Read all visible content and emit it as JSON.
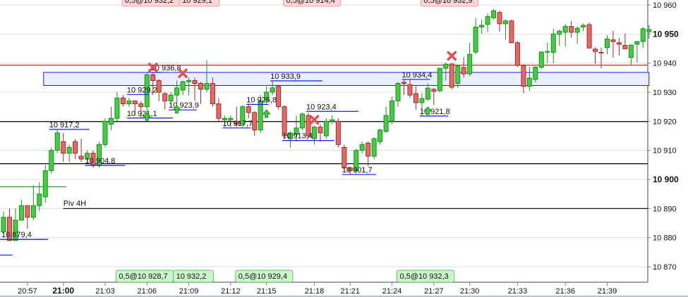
{
  "chart_data": {
    "type": "candlestick",
    "ylim": [
      10865,
      10962
    ],
    "y_ticks": [
      10960,
      10950,
      10940,
      10930,
      10920,
      10910,
      10900,
      10890,
      10880,
      10870
    ],
    "y_tick_labels": [
      "10 960",
      "10 950",
      "10 940",
      "10 930",
      "10 920",
      "10 910",
      "10 900",
      "10 890",
      "10 880",
      "10 870"
    ],
    "y_bold_ticks": [
      10950,
      10900
    ],
    "x_ticks": [
      {
        "candle": 4,
        "label": "20:57"
      },
      {
        "candle": 10,
        "label": "21:00",
        "bold": true
      },
      {
        "candle": 17,
        "label": "21:03"
      },
      {
        "candle": 24,
        "label": "21:06"
      },
      {
        "candle": 31,
        "label": "21:09"
      },
      {
        "candle": 38,
        "label": "21:12"
      },
      {
        "candle": 44,
        "label": "21:15"
      },
      {
        "candle": 52,
        "label": "21:18"
      },
      {
        "candle": 58,
        "label": "21:21"
      },
      {
        "candle": 65,
        "label": "21:24"
      },
      {
        "candle": 72,
        "label": "21:27"
      },
      {
        "candle": 78,
        "label": "21:30"
      },
      {
        "candle": 86,
        "label": "21:33"
      },
      {
        "candle": 94,
        "label": "21:36"
      },
      {
        "candle": 101,
        "label": "21:39"
      }
    ],
    "grid": true,
    "colors": {
      "up": "#44cc44",
      "up_border": "#1a8f1a",
      "down": "#e46a6a",
      "down_border": "#a82828",
      "level": "#1a1aee",
      "resistance": "#ee1111",
      "zone_fill": "#e8eefc"
    },
    "ohlc": [
      [
        10882,
        10889,
        10881,
        10887
      ],
      [
        10887,
        10890,
        10879,
        10879
      ],
      [
        10879,
        10890,
        10879,
        10886
      ],
      [
        10886,
        10893,
        10886,
        10891
      ],
      [
        10891,
        10891,
        10883,
        10887
      ],
      [
        10887,
        10898,
        10886,
        10891
      ],
      [
        10891,
        10899,
        10889,
        10895
      ],
      [
        10894,
        10905,
        10892,
        10903
      ],
      [
        10903,
        10911,
        10902,
        10910
      ],
      [
        10910,
        10917,
        10909,
        10916
      ],
      [
        10913,
        10916,
        10906,
        10909
      ],
      [
        10909,
        10912,
        10906,
        10911
      ],
      [
        10913,
        10914,
        10907,
        10909
      ],
      [
        10908,
        10914,
        10906,
        10907
      ],
      [
        10907,
        10910,
        10906,
        10909
      ],
      [
        10909,
        10910,
        10904,
        10905
      ],
      [
        10905,
        10913,
        10904,
        10912
      ],
      [
        10912,
        10921,
        10911,
        10920
      ],
      [
        10919,
        10925,
        10917,
        10921
      ],
      [
        10921,
        10930,
        10920,
        10928
      ],
      [
        10928,
        10929,
        10925,
        10926
      ],
      [
        10926,
        10928,
        10925,
        10927
      ],
      [
        10927,
        10927,
        10922,
        10926
      ],
      [
        10926,
        10927,
        10921,
        10925
      ],
      [
        10925,
        10937,
        10922,
        10936
      ],
      [
        10936,
        10936.5,
        10929,
        10934
      ],
      [
        10934,
        10934.5,
        10927,
        10930
      ],
      [
        10929.5,
        10930,
        10924,
        10927
      ],
      [
        10927,
        10930,
        10925,
        10929
      ],
      [
        10929,
        10934,
        10926,
        10931.5
      ],
      [
        10930.7,
        10934,
        10929,
        10933.6
      ],
      [
        10933.6,
        10935,
        10929,
        10934
      ],
      [
        10934,
        10935,
        10927,
        10933
      ],
      [
        10933,
        10933.5,
        10926,
        10931
      ],
      [
        10931,
        10941,
        10930,
        10933
      ],
      [
        10933,
        10935,
        10925,
        10926
      ],
      [
        10926,
        10928,
        10920,
        10921
      ],
      [
        10920.5,
        10922,
        10918,
        10921
      ],
      [
        10920.5,
        10922,
        10918,
        10921
      ],
      [
        10920,
        10925,
        10918,
        10919
      ],
      [
        10919,
        10925.5,
        10918,
        10925
      ],
      [
        10925,
        10926,
        10921,
        10923
      ],
      [
        10923,
        10923.5,
        10915,
        10917
      ],
      [
        10917,
        10929,
        10916,
        10927
      ],
      [
        10927,
        10932,
        10926,
        10930
      ],
      [
        10930,
        10934,
        10929,
        10931.5
      ],
      [
        10932,
        10932.5,
        10924,
        10925
      ],
      [
        10925,
        10925.5,
        10914,
        10915
      ],
      [
        10914,
        10916.5,
        10911,
        10916
      ],
      [
        10915.5,
        10922,
        10913,
        10917.7
      ],
      [
        10917.7,
        10923,
        10917,
        10922.5
      ],
      [
        10922,
        10923,
        10914,
        10915
      ],
      [
        10914,
        10918.5,
        10912,
        10918
      ],
      [
        10918,
        10919,
        10913,
        10916
      ],
      [
        10915,
        10921,
        10914,
        10920
      ],
      [
        10920,
        10922,
        10919,
        10920.5
      ],
      [
        10920,
        10921,
        10911,
        10912
      ],
      [
        10911,
        10912,
        10903,
        10904
      ],
      [
        10904,
        10904.5,
        10901.7,
        10903
      ],
      [
        10903,
        10910.5,
        10902,
        10910
      ],
      [
        10910,
        10913,
        10909,
        10912
      ],
      [
        10912.5,
        10913,
        10904.6,
        10908
      ],
      [
        10908,
        10914.5,
        10907,
        10914
      ],
      [
        10913,
        10917.5,
        10912,
        10917
      ],
      [
        10916.5,
        10925,
        10916,
        10922
      ],
      [
        10920,
        10928.5,
        10919,
        10927
      ],
      [
        10927,
        10933.5,
        10925,
        10933
      ],
      [
        10933.4,
        10934.4,
        10929,
        10933
      ],
      [
        10932.6,
        10934.4,
        10928,
        10929
      ],
      [
        10929.5,
        10932,
        10924,
        10926.4
      ],
      [
        10926.4,
        10929.6,
        10921.8,
        10927.8
      ],
      [
        10927.6,
        10933,
        10927,
        10931.4
      ],
      [
        10931,
        10931.5,
        10925.5,
        10930.3
      ],
      [
        10930.5,
        10938.5,
        10930,
        10938.2
      ],
      [
        10938.2,
        10940.2,
        10934,
        10939.6
      ],
      [
        10939.7,
        10940,
        10931,
        10931.7
      ],
      [
        10933,
        10939.5,
        10931.5,
        10939
      ],
      [
        10938.5,
        10942,
        10935,
        10936.3
      ],
      [
        10936.3,
        10947,
        10935.5,
        10943
      ],
      [
        10943.8,
        10955.5,
        10943,
        10952.4
      ],
      [
        10952.4,
        10955,
        10950,
        10953
      ],
      [
        10953.3,
        10957,
        10950.6,
        10956
      ],
      [
        10955.6,
        10958.5,
        10955,
        10958
      ],
      [
        10957.4,
        10958,
        10950.8,
        10953.5
      ],
      [
        10953.5,
        10955,
        10948,
        10954.5
      ],
      [
        10954.5,
        10955,
        10947,
        10947
      ],
      [
        10947,
        10947.5,
        10938.7,
        10939.2
      ],
      [
        10939.2,
        10939.7,
        10929.6,
        10932
      ],
      [
        10932,
        10938.7,
        10930.5,
        10934.8
      ],
      [
        10934.4,
        10939,
        10933.4,
        10938.6
      ],
      [
        10938.6,
        10944,
        10938,
        10943.8
      ],
      [
        10943.8,
        10947,
        10940,
        10944
      ],
      [
        10943.7,
        10951.8,
        10940,
        10950
      ],
      [
        10949.9,
        10951.5,
        10946,
        10951
      ],
      [
        10950.6,
        10953.5,
        10945.7,
        10952.6
      ],
      [
        10952.6,
        10954.5,
        10948.8,
        10950.6
      ],
      [
        10950.6,
        10952.6,
        10946.6,
        10952
      ],
      [
        10952.4,
        10953.6,
        10951,
        10953
      ],
      [
        10953.2,
        10954,
        10945,
        10945.2
      ],
      [
        10944.8,
        10945.4,
        10939.7,
        10944
      ],
      [
        10943.7,
        10945.3,
        10938.2,
        10943.5
      ],
      [
        10945.3,
        10949.6,
        10943.1,
        10948.3
      ],
      [
        10948,
        10951.1,
        10941.9,
        10947.4
      ],
      [
        10947,
        10948.6,
        10942.6,
        10946.5
      ],
      [
        10946.1,
        10950.2,
        10945,
        10944.9
      ],
      [
        10941.9,
        10946.4,
        10939.4,
        10946.2
      ],
      [
        10946.5,
        10947.6,
        10940.2,
        10947.4
      ],
      [
        10947.4,
        10952.4,
        10945.2,
        10951.8
      ],
      [
        10950.8,
        10953.1,
        10948.4,
        10951.5
      ]
    ],
    "horizontal_lines": [
      {
        "price": 10939.3,
        "color": "#ee1111",
        "from_candle": 0
      },
      {
        "price": 10919.9,
        "color": "#000000",
        "from_candle": 0
      },
      {
        "price": 10905.4,
        "color": "#000000",
        "from_candle": 0
      },
      {
        "price": 10890,
        "color": "#000000",
        "from_candle": 10,
        "label": "Piv 4H"
      },
      {
        "price": 10897.5,
        "color": "#1a8f1a",
        "from_candle": 0,
        "to_candle": 10
      },
      {
        "price": 10879.4,
        "color": "#1a1aee",
        "from_candle": 0,
        "to_candle": 7
      },
      {
        "price": 10874,
        "color": "#1a1aee",
        "from_candle": 0,
        "to_candle": 1
      }
    ],
    "zone": {
      "low": 10932.3,
      "high": 10936.8,
      "from_candle": 6,
      "to_candle": 108
    },
    "level_labels": [
      {
        "text": "10 936,8",
        "price": 10936.8,
        "from": 25,
        "to": 26
      },
      {
        "text": "10 929,2",
        "price": 10929.2,
        "from": 21,
        "to": 24
      },
      {
        "text": "10 921,1",
        "price": 10921.1,
        "from": 21,
        "to": 28
      },
      {
        "text": "10 923,9",
        "price": 10923.9,
        "from": 28,
        "to": 32
      },
      {
        "text": "10 917,2",
        "price": 10917.2,
        "from": 8,
        "to": 14
      },
      {
        "text": "10 904,8",
        "price": 10904.8,
        "from": 14,
        "to": 20
      },
      {
        "text": "10 879,4",
        "price": 10879.4,
        "from": 0,
        "to": 7
      },
      {
        "text": "10 933,9",
        "price": 10933.9,
        "from": 45,
        "to": 53
      },
      {
        "text": "10 925,8",
        "price": 10925.8,
        "from": 41,
        "to": 44
      },
      {
        "text": "10 917,7",
        "price": 10917.7,
        "from": 37,
        "to": 41
      },
      {
        "text": "10 913,4",
        "price": 10913.4,
        "from": 47,
        "to": 55
      },
      {
        "text": "10 923,4",
        "price": 10923.4,
        "from": 51,
        "to": 59
      },
      {
        "text": "10 901,7",
        "price": 10901.7,
        "from": 57,
        "to": 62
      },
      {
        "text": "10 934,4",
        "price": 10934.4,
        "from": 67,
        "to": 71
      },
      {
        "text": "10 921,8",
        "price": 10921.8,
        "from": 70,
        "to": 74
      }
    ],
    "sell_markers": [
      {
        "candle": 25,
        "price": 10938.5
      },
      {
        "candle": 30,
        "price": 10936.5
      },
      {
        "candle": 52,
        "price": 10920.5
      },
      {
        "candle": 75,
        "price": 10942.5
      }
    ],
    "buy_markers": [
      {
        "candle": 24,
        "price": 10921.5
      },
      {
        "candle": 29,
        "price": 10924
      },
      {
        "candle": 44,
        "price": 10922.5
      },
      {
        "candle": 71,
        "price": 10923.5
      }
    ],
    "sell_orders": [
      {
        "text": "0,5@10 932,2",
        "candle": 21
      },
      {
        "text": "10 929,1",
        "candle": 29
      },
      {
        "text": "0,5@10 914,4",
        "candle": 48
      },
      {
        "text": "0,5@10 932,9",
        "candle": 71
      }
    ],
    "buy_orders": [
      {
        "text": "0,5@10 928,7",
        "candle": 20
      },
      {
        "text": "10 932,2",
        "candle": 29
      },
      {
        "text": "0,5@10 929,4",
        "candle": 40
      },
      {
        "text": "0,5@10 932,3",
        "candle": 67
      }
    ]
  }
}
